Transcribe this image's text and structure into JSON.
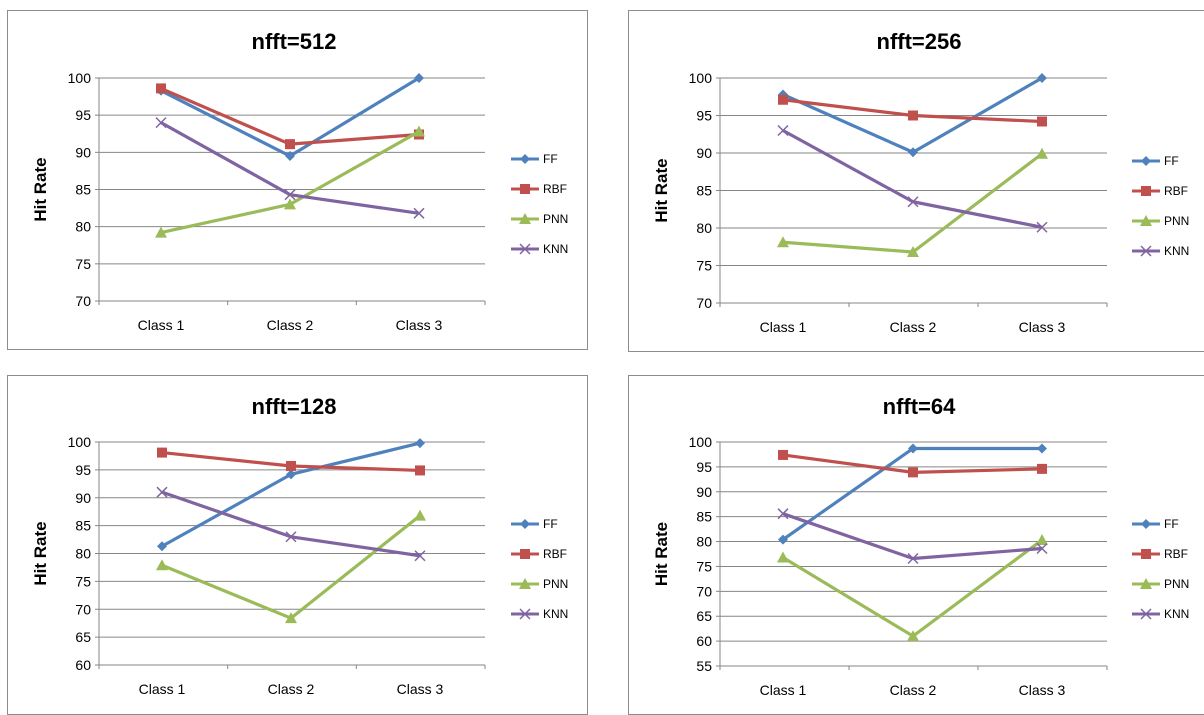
{
  "chart_data": [
    {
      "type": "line",
      "title": "nfft=512",
      "ylabel": "Hit Rate",
      "xlabel": "",
      "categories": [
        "Class 1",
        "Class 2",
        "Class 3"
      ],
      "ylim": [
        70,
        100
      ],
      "ytick_step": 5,
      "yticks": [
        "70",
        "75",
        "80",
        "85",
        "90",
        "95",
        "100"
      ],
      "grid": true,
      "legend_position": "right",
      "series": [
        {
          "name": "FF",
          "values": [
            98.3,
            89.5,
            100
          ],
          "color": "#4f81bd",
          "marker": "diamond"
        },
        {
          "name": "RBF",
          "values": [
            98.6,
            91.1,
            92.4
          ],
          "color": "#c0504d",
          "marker": "square"
        },
        {
          "name": "PNN",
          "values": [
            79.2,
            83.0,
            92.8
          ],
          "color": "#9bbb59",
          "marker": "triangle"
        },
        {
          "name": "KNN",
          "values": [
            94.0,
            84.3,
            81.8
          ],
          "color": "#8064a2",
          "marker": "x"
        }
      ]
    },
    {
      "type": "line",
      "title": "nfft=256",
      "ylabel": "Hit Rate",
      "xlabel": "",
      "categories": [
        "Class 1",
        "Class 2",
        "Class 3"
      ],
      "ylim": [
        70,
        100
      ],
      "ytick_step": 5,
      "yticks": [
        "70",
        "75",
        "80",
        "85",
        "90",
        "95",
        "100"
      ],
      "grid": true,
      "legend_position": "right",
      "series": [
        {
          "name": "FF",
          "values": [
            97.8,
            90.1,
            100
          ],
          "color": "#4f81bd",
          "marker": "diamond"
        },
        {
          "name": "RBF",
          "values": [
            97.1,
            95.0,
            94.2
          ],
          "color": "#c0504d",
          "marker": "square"
        },
        {
          "name": "PNN",
          "values": [
            78.1,
            76.8,
            89.9
          ],
          "color": "#9bbb59",
          "marker": "triangle"
        },
        {
          "name": "KNN",
          "values": [
            93.0,
            83.5,
            80.1
          ],
          "color": "#8064a2",
          "marker": "x"
        }
      ]
    },
    {
      "type": "line",
      "title": "nfft=128",
      "ylabel": "Hit Rate",
      "xlabel": "",
      "categories": [
        "Class 1",
        "Class 2",
        "Class 3"
      ],
      "ylim": [
        60,
        100
      ],
      "ytick_step": 5,
      "yticks": [
        "60",
        "65",
        "70",
        "75",
        "80",
        "85",
        "90",
        "95",
        "100"
      ],
      "grid": true,
      "legend_position": "right",
      "series": [
        {
          "name": "FF",
          "values": [
            81.3,
            94.2,
            99.8
          ],
          "color": "#4f81bd",
          "marker": "diamond"
        },
        {
          "name": "RBF",
          "values": [
            98.1,
            95.7,
            94.9
          ],
          "color": "#c0504d",
          "marker": "square"
        },
        {
          "name": "PNN",
          "values": [
            77.9,
            68.4,
            86.8
          ],
          "color": "#9bbb59",
          "marker": "triangle"
        },
        {
          "name": "KNN",
          "values": [
            91.0,
            83.0,
            79.6
          ],
          "color": "#8064a2",
          "marker": "x"
        }
      ]
    },
    {
      "type": "line",
      "title": "nfft=64",
      "ylabel": "Hit Rate",
      "xlabel": "",
      "categories": [
        "Class 1",
        "Class 2",
        "Class 3"
      ],
      "ylim": [
        55,
        100
      ],
      "ytick_step": 5,
      "yticks": [
        "55",
        "60",
        "65",
        "70",
        "75",
        "80",
        "85",
        "90",
        "95",
        "100"
      ],
      "grid": true,
      "legend_position": "right",
      "series": [
        {
          "name": "FF",
          "values": [
            80.4,
            98.7,
            98.7
          ],
          "color": "#4f81bd",
          "marker": "diamond"
        },
        {
          "name": "RBF",
          "values": [
            97.4,
            93.9,
            94.6
          ],
          "color": "#c0504d",
          "marker": "square"
        },
        {
          "name": "PNN",
          "values": [
            76.8,
            61.0,
            80.3
          ],
          "color": "#9bbb59",
          "marker": "triangle"
        },
        {
          "name": "KNN",
          "values": [
            85.6,
            76.6,
            78.6
          ],
          "color": "#8064a2",
          "marker": "x"
        }
      ]
    }
  ]
}
